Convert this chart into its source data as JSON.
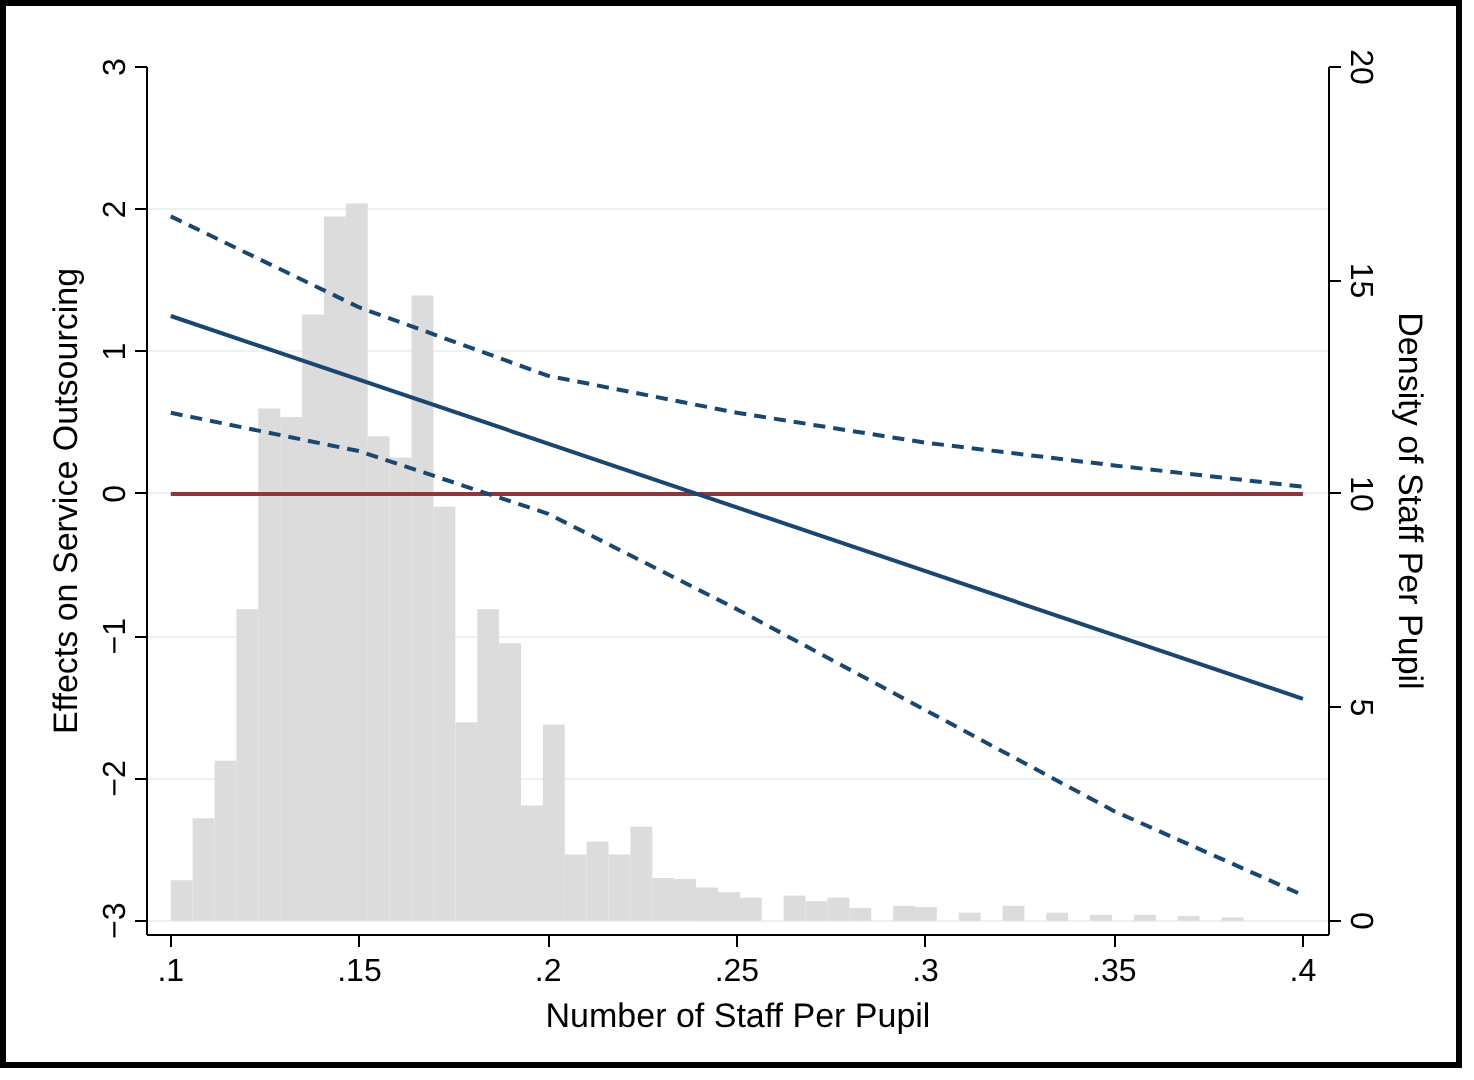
{
  "chart_data": {
    "type": "line",
    "xlabel": "Number of Staff Per Pupil",
    "ylabel": "Effects on Service Outsourcing",
    "y2label": "Density of Staff Per Pupil",
    "xlim": [
      0.0937,
      0.4069
    ],
    "ylim": [
      -3.1,
      3.0
    ],
    "y2lim": [
      -0.333,
      20
    ],
    "xticks": [
      {
        "value": 0.1,
        "label": ".1"
      },
      {
        "value": 0.15,
        "label": ".15"
      },
      {
        "value": 0.2,
        "label": ".2"
      },
      {
        "value": 0.25,
        "label": ".25"
      },
      {
        "value": 0.3,
        "label": ".3"
      },
      {
        "value": 0.35,
        "label": ".35"
      },
      {
        "value": 0.4,
        "label": ".4"
      }
    ],
    "yticks": [
      -3,
      -2,
      -1,
      0,
      1,
      2,
      3
    ],
    "y2ticks": [
      0,
      5,
      10,
      15,
      20
    ],
    "grid": "y",
    "series": [
      {
        "type": "histogram",
        "axis": "y2",
        "color": "#dcdcdc",
        "bins": [
          0.1,
          0.1058,
          0.1116,
          0.1174,
          0.1232,
          0.129,
          0.1348,
          0.1406,
          0.1464,
          0.1522,
          0.158,
          0.1638,
          0.1696,
          0.1754,
          0.1812,
          0.187,
          0.1928,
          0.1986,
          0.2044,
          0.2102,
          0.216,
          0.2218,
          0.2276,
          0.2334,
          0.2392,
          0.245,
          0.2508,
          0.2566,
          0.2624,
          0.2682,
          0.274,
          0.2798,
          0.2856,
          0.2914,
          0.2972,
          0.303,
          0.3088,
          0.3146,
          0.3204,
          0.3262,
          0.332,
          0.3378,
          0.3436,
          0.3494,
          0.3552,
          0.361,
          0.3668,
          0.3726,
          0.3784,
          0.3842
        ],
        "values": [
          0.95,
          2.4,
          3.75,
          7.3,
          12.0,
          11.8,
          14.2,
          16.5,
          16.8,
          11.35,
          10.85,
          14.65,
          9.7,
          4.65,
          7.3,
          6.5,
          2.7,
          4.6,
          1.55,
          1.85,
          1.55,
          2.2,
          1.0,
          0.98,
          0.78,
          0.67,
          0.54,
          0,
          0.59,
          0.46,
          0.54,
          0.3,
          0,
          0.35,
          0.32,
          0,
          0.19,
          0,
          0.35,
          0,
          0.19,
          0,
          0.14,
          0,
          0.14,
          0,
          0.11,
          0,
          0.08
        ]
      },
      {
        "color": "#90353b",
        "line_style": "solid",
        "x": [
          0.1,
          0.4
        ],
        "values": [
          0,
          0
        ]
      },
      {
        "color": "#1a476f",
        "line_style": "solid",
        "x": [
          0.1,
          0.4
        ],
        "values": [
          1.25,
          -1.44
        ]
      },
      {
        "color": "#1a476f",
        "line_style": "dashed",
        "x": [
          0.1,
          0.15,
          0.2,
          0.25,
          0.3,
          0.35,
          0.4
        ],
        "values": [
          1.95,
          1.31,
          0.83,
          0.57,
          0.36,
          0.2,
          0.05
        ]
      },
      {
        "color": "#1a476f",
        "line_style": "dashed",
        "x": [
          0.1,
          0.15,
          0.2,
          0.25,
          0.3,
          0.35,
          0.4
        ],
        "values": [
          0.57,
          0.3,
          -0.14,
          -0.81,
          -1.52,
          -2.23,
          -2.82
        ]
      }
    ]
  }
}
